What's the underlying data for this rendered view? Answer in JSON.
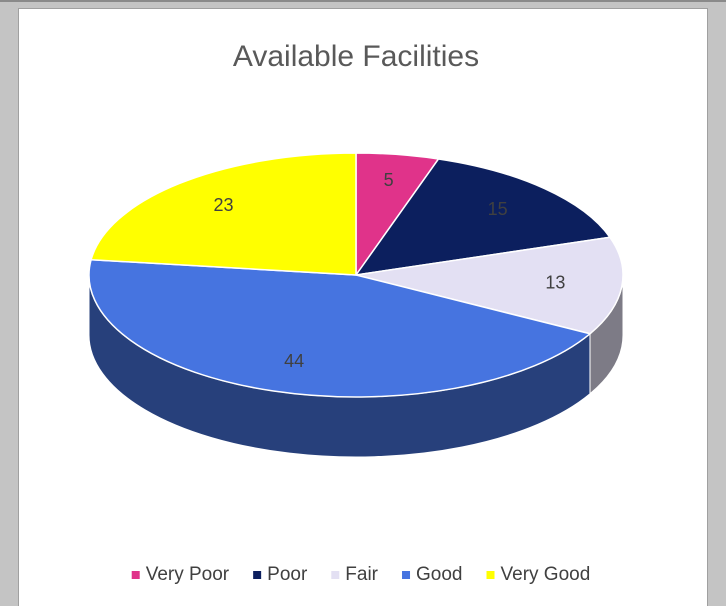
{
  "chart_data": {
    "type": "pie",
    "title": "Available Facilities",
    "categories": [
      "Very Poor",
      "Poor",
      "Fair",
      "Good",
      "Very Good"
    ],
    "values": [
      5,
      15,
      13,
      44,
      23
    ],
    "colors": [
      "#e0338a",
      "#0c1f5e",
      "#e3e0f3",
      "#4674e0",
      "#ffff00"
    ],
    "legend": "bottom"
  }
}
